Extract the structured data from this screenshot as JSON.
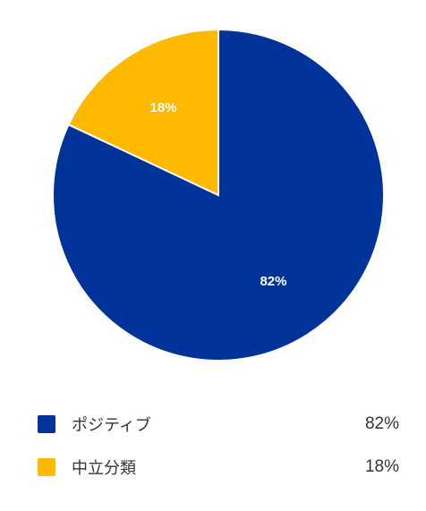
{
  "chart_data": {
    "type": "pie",
    "categories": [
      "ポジティブ",
      "中立分類"
    ],
    "values": [
      82,
      18
    ],
    "labels": [
      "82%",
      "18%"
    ],
    "colors": [
      "#003399",
      "#FFB900"
    ],
    "start": "top",
    "direction": "clockwise",
    "legend_position": "bottom"
  },
  "legend": {
    "items": [
      {
        "label": "ポジティブ",
        "value": "82%",
        "color": "#003399"
      },
      {
        "label": "中立分類",
        "value": "18%",
        "color": "#FFB900"
      }
    ]
  }
}
